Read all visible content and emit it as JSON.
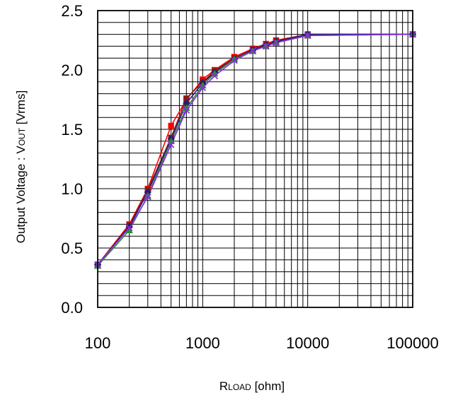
{
  "chart_data": {
    "type": "line",
    "title": "",
    "xlabel": {
      "main": "R",
      "subscript": "LOAD",
      "suffix": " [ohm]"
    },
    "ylabel": {
      "prefix": "Output Voltage : V",
      "subscript": "OUT",
      "suffix": " [Vrms]"
    },
    "x_scale": "log",
    "xlim": [
      100,
      100000
    ],
    "ylim": [
      0.0,
      2.5
    ],
    "x_tick_labels": [
      "100",
      "1000",
      "10000",
      "100000"
    ],
    "y_tick_labels": [
      "0.0",
      "0.5",
      "1.0",
      "1.5",
      "2.0",
      "2.5"
    ],
    "grid": true,
    "legend": "none",
    "x": [
      100,
      200,
      300,
      500,
      700,
      1000,
      1300,
      2000,
      3000,
      4000,
      5000,
      10000,
      100000
    ],
    "series": [
      {
        "color": "#ff0000",
        "marker": "square",
        "values": [
          0.36,
          0.7,
          1.0,
          1.53,
          1.75,
          1.92,
          2.0,
          2.11,
          2.18,
          2.22,
          2.25,
          2.3,
          2.3
        ]
      },
      {
        "color": "#8b1a1a",
        "marker": "square",
        "values": [
          0.36,
          0.69,
          0.99,
          1.43,
          1.76,
          1.9,
          1.99,
          2.1,
          2.17,
          2.21,
          2.24,
          2.3,
          2.3
        ]
      },
      {
        "color": "#1f1f7a",
        "marker": "diamond",
        "values": [
          0.36,
          0.68,
          0.97,
          1.42,
          1.72,
          1.89,
          1.98,
          2.09,
          2.17,
          2.21,
          2.24,
          2.3,
          2.3
        ]
      },
      {
        "color": "#2e8b2e",
        "marker": "triangle",
        "values": [
          0.35,
          0.65,
          0.94,
          1.4,
          1.68,
          1.87,
          1.97,
          2.09,
          2.16,
          2.2,
          2.23,
          2.29,
          2.3
        ]
      },
      {
        "color": "#8a2be2",
        "marker": "x",
        "values": [
          0.36,
          0.67,
          0.93,
          1.37,
          1.66,
          1.85,
          1.95,
          2.08,
          2.16,
          2.2,
          2.23,
          2.29,
          2.3
        ]
      }
    ]
  }
}
